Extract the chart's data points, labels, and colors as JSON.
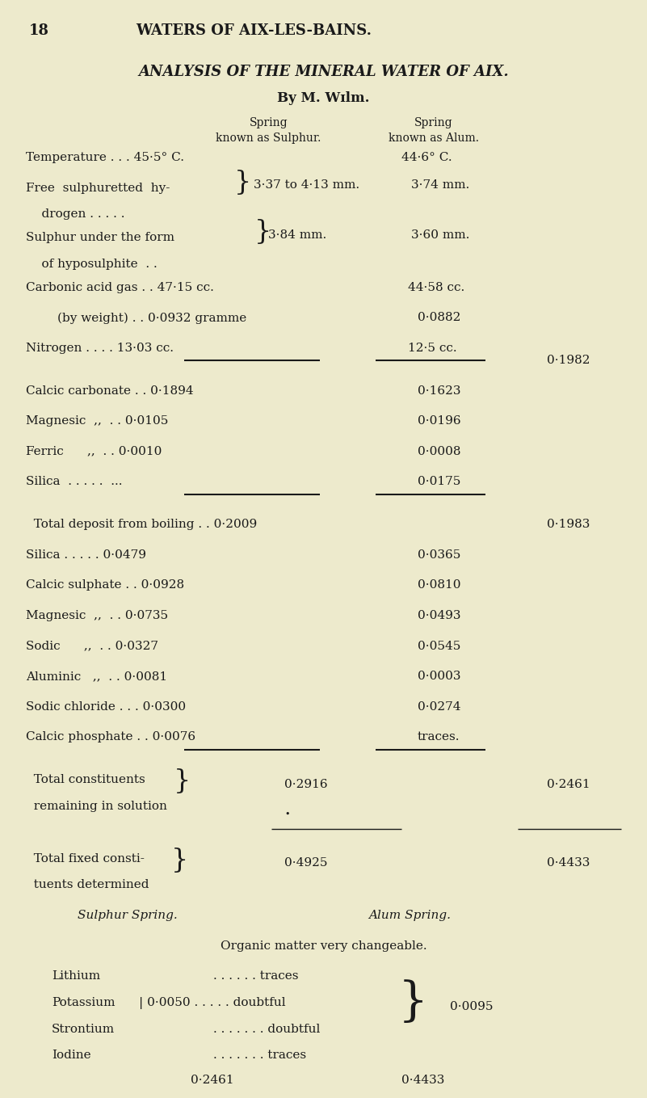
{
  "bg_color": "#edeacc",
  "text_color": "#1a1a1a",
  "page_number": "18",
  "page_header": "WATERS OF AIX-LES-BAINS.",
  "title_line1": "ANALYSIS OF THE MINERAL WATER OF AIX.",
  "title_line2": "By M. Wɪlm.",
  "col1_header": [
    "Spring",
    "known as Sulphur."
  ],
  "col2_header": [
    "Spring",
    "known as Alum."
  ]
}
